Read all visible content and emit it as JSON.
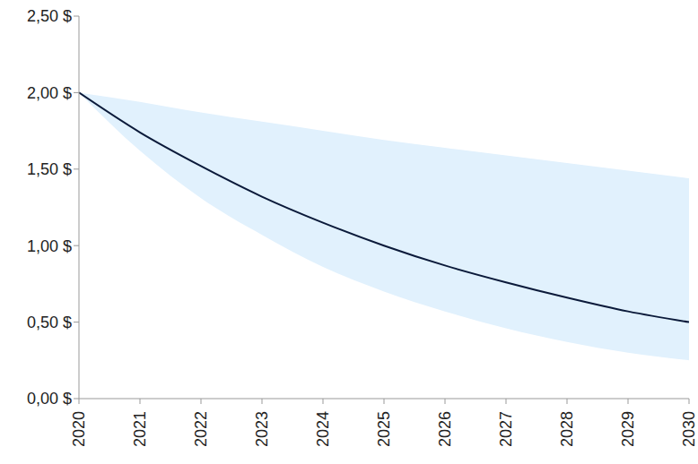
{
  "chart_data": {
    "type": "line",
    "x": [
      2020,
      2021,
      2022,
      2023,
      2024,
      2025,
      2026,
      2027,
      2028,
      2029,
      2030
    ],
    "series": [
      {
        "color": "#0b1a3a",
        "values": [
          2.0,
          1.74,
          1.52,
          1.32,
          1.15,
          1.0,
          0.87,
          0.76,
          0.66,
          0.57,
          0.5
        ]
      }
    ],
    "band": {
      "color": "#e1f1fd",
      "lower": [
        2.0,
        1.62,
        1.31,
        1.07,
        0.86,
        0.7,
        0.57,
        0.46,
        0.37,
        0.3,
        0.25
      ],
      "upper": [
        2.0,
        1.94,
        1.87,
        1.81,
        1.75,
        1.69,
        1.64,
        1.59,
        1.54,
        1.49,
        1.44
      ]
    },
    "xlim": [
      2020,
      2030
    ],
    "xticks": [
      2020,
      2021,
      2022,
      2023,
      2024,
      2025,
      2026,
      2027,
      2028,
      2029,
      2030
    ],
    "ylim": [
      0,
      2.5
    ],
    "yticks": [
      {
        "value": 0,
        "label": "0,00 $"
      },
      {
        "value": 0.5,
        "label": "0,50 $"
      },
      {
        "value": 1,
        "label": "1,00 $"
      },
      {
        "value": 1.5,
        "label": "1,50 $"
      },
      {
        "value": 2,
        "label": "2,00 $"
      },
      {
        "value": 2.5,
        "label": "2,50 $"
      }
    ],
    "grid": false
  }
}
